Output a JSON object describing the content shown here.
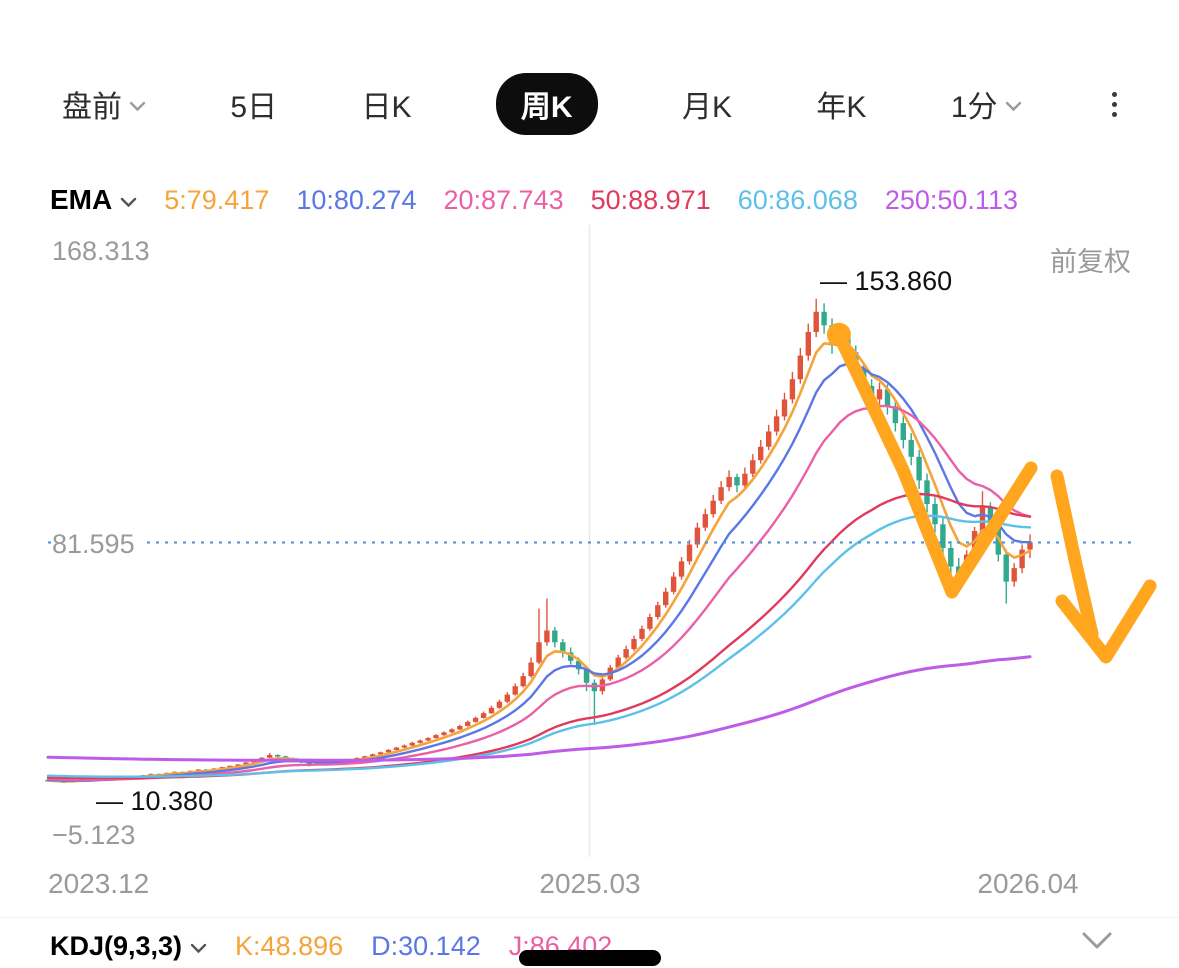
{
  "tabs": {
    "items": [
      {
        "label": "盘前",
        "chevron": true
      },
      {
        "label": "5日"
      },
      {
        "label": "日K"
      },
      {
        "label": "周K",
        "selected": true
      },
      {
        "label": "月K"
      },
      {
        "label": "年K"
      },
      {
        "label": "1分",
        "chevron": true
      }
    ]
  },
  "indicator_bar": {
    "name": "EMA",
    "values": [
      {
        "label": "5:79.417",
        "color": "#F4A43B"
      },
      {
        "label": "10:80.274",
        "color": "#5A77E6"
      },
      {
        "label": "20:87.743",
        "color": "#EC5FA7"
      },
      {
        "label": "50:88.971",
        "color": "#E03A5C"
      },
      {
        "label": "60:86.068",
        "color": "#5CC0E8"
      },
      {
        "label": "250:50.113",
        "color": "#BE5BE8"
      }
    ]
  },
  "chart": {
    "adjust_label": "前复权",
    "y_max_label": "168.313",
    "y_min_label": "−5.123",
    "price_line_label": "81.595",
    "high_annotation": "— 153.860",
    "low_annotation": "— 10.380",
    "x_labels": [
      "2023.12",
      "2025.03",
      "2026.04"
    ]
  },
  "chart_data": {
    "type": "candlestick",
    "title": "周K (weekly candles, 前复权)",
    "ylim": [
      -5.123,
      168.313
    ],
    "x_axis_labels": [
      "2023.12",
      "2025.03",
      "2026.04"
    ],
    "high_marker": 153.86,
    "low_marker": 10.38,
    "current_price": 81.595,
    "price_line_color": "#4A90D9",
    "up_color": "#E0543C",
    "down_color": "#31A98C",
    "grid_x_fraction": 0.5,
    "candles": [
      [
        11.2,
        11.4,
        10.9,
        11.0
      ],
      [
        11.0,
        11.1,
        10.7,
        10.8
      ],
      [
        10.8,
        10.9,
        10.38,
        10.5
      ],
      [
        10.5,
        11.0,
        10.4,
        10.9
      ],
      [
        10.9,
        11.3,
        10.8,
        11.2
      ],
      [
        11.2,
        11.3,
        10.9,
        11.0
      ],
      [
        11.0,
        11.5,
        10.9,
        11.4
      ],
      [
        11.4,
        11.9,
        11.3,
        11.8
      ],
      [
        11.8,
        11.9,
        11.5,
        11.6
      ],
      [
        11.6,
        12.1,
        11.5,
        12.0
      ],
      [
        12.0,
        12.4,
        11.9,
        12.3
      ],
      [
        12.3,
        12.4,
        12.0,
        12.1
      ],
      [
        12.1,
        12.7,
        12.0,
        12.6
      ],
      [
        12.6,
        13.1,
        12.5,
        13.0
      ],
      [
        13.0,
        13.1,
        12.7,
        12.8
      ],
      [
        12.8,
        13.4,
        12.7,
        13.3
      ],
      [
        13.3,
        13.7,
        13.2,
        13.6
      ],
      [
        13.6,
        13.7,
        13.3,
        13.4
      ],
      [
        13.4,
        14.0,
        13.3,
        13.9
      ],
      [
        13.9,
        14.4,
        13.8,
        14.3
      ],
      [
        14.3,
        14.4,
        14.0,
        14.1
      ],
      [
        14.1,
        14.7,
        14.0,
        14.6
      ],
      [
        14.6,
        15.1,
        14.5,
        15.0
      ],
      [
        15.0,
        15.5,
        14.9,
        15.4
      ],
      [
        15.4,
        15.9,
        15.3,
        15.8
      ],
      [
        15.8,
        16.5,
        15.7,
        16.4
      ],
      [
        16.4,
        17.1,
        16.3,
        17.0
      ],
      [
        17.0,
        17.9,
        16.9,
        17.8
      ],
      [
        17.8,
        19.2,
        17.7,
        18.6
      ],
      [
        18.6,
        18.8,
        18.0,
        18.2
      ],
      [
        18.2,
        18.4,
        17.4,
        17.6
      ],
      [
        17.6,
        17.8,
        16.8,
        17.0
      ],
      [
        17.0,
        17.2,
        16.2,
        16.4
      ],
      [
        16.4,
        16.6,
        15.2,
        15.9
      ],
      [
        15.9,
        16.5,
        15.8,
        16.3
      ],
      [
        16.3,
        16.4,
        15.8,
        16.0
      ],
      [
        16.0,
        16.7,
        15.9,
        16.5
      ],
      [
        16.5,
        17.1,
        16.4,
        16.9
      ],
      [
        16.9,
        17.5,
        16.8,
        17.3
      ],
      [
        17.3,
        17.9,
        17.2,
        17.7
      ],
      [
        17.7,
        18.4,
        17.6,
        18.2
      ],
      [
        18.2,
        19.0,
        18.1,
        18.8
      ],
      [
        18.8,
        19.6,
        18.7,
        19.4
      ],
      [
        19.4,
        20.3,
        19.3,
        20.1
      ],
      [
        20.1,
        21.0,
        20.0,
        20.8
      ],
      [
        20.8,
        21.7,
        20.6,
        21.4
      ],
      [
        21.4,
        22.5,
        21.3,
        22.2
      ],
      [
        22.2,
        23.2,
        22.0,
        22.9
      ],
      [
        22.9,
        23.9,
        22.7,
        23.6
      ],
      [
        23.6,
        24.8,
        23.5,
        24.5
      ],
      [
        24.5,
        25.6,
        24.3,
        25.3
      ],
      [
        25.3,
        26.5,
        25.1,
        26.2
      ],
      [
        26.2,
        27.6,
        26.0,
        27.2
      ],
      [
        27.2,
        28.8,
        27.0,
        28.4
      ],
      [
        28.4,
        30.0,
        28.2,
        29.6
      ],
      [
        29.6,
        31.5,
        29.4,
        31.0
      ],
      [
        31.0,
        33.2,
        30.8,
        32.6
      ],
      [
        32.6,
        35.0,
        32.3,
        34.4
      ],
      [
        34.4,
        37.2,
        34.0,
        36.5
      ],
      [
        36.5,
        39.8,
        36.2,
        39.0
      ],
      [
        39.0,
        43.0,
        38.6,
        42.0
      ],
      [
        42.0,
        47.5,
        41.5,
        46.0
      ],
      [
        46.0,
        62.0,
        45.5,
        52.0
      ],
      [
        52.0,
        65.0,
        51.0,
        55.5
      ],
      [
        55.5,
        56.5,
        50.5,
        52.0
      ],
      [
        52.0,
        53.0,
        47.5,
        49.0
      ],
      [
        49.0,
        50.5,
        45.5,
        46.5
      ],
      [
        46.5,
        47.5,
        42.5,
        44.0
      ],
      [
        44.0,
        45.0,
        37.5,
        40.0
      ],
      [
        40.0,
        41.0,
        27.5,
        37.5
      ],
      [
        37.5,
        42.0,
        36.5,
        41.0
      ],
      [
        41.0,
        45.3,
        40.5,
        44.5
      ],
      [
        44.5,
        48.3,
        44.0,
        47.5
      ],
      [
        47.5,
        51.0,
        47.0,
        50.0
      ],
      [
        50.0,
        54.0,
        49.4,
        53.0
      ],
      [
        53.0,
        57.0,
        52.4,
        56.0
      ],
      [
        56.0,
        60.5,
        55.4,
        59.5
      ],
      [
        59.5,
        64.0,
        58.8,
        63.0
      ],
      [
        63.0,
        68.2,
        62.3,
        67.0
      ],
      [
        67.0,
        72.8,
        66.2,
        71.5
      ],
      [
        71.5,
        77.3,
        70.6,
        76.0
      ],
      [
        76.0,
        82.4,
        75.0,
        81.0
      ],
      [
        81.0,
        87.5,
        80.0,
        86.0
      ],
      [
        86.0,
        91.6,
        85.0,
        90.0
      ],
      [
        90.0,
        95.7,
        89.0,
        94.0
      ],
      [
        94.0,
        99.8,
        93.0,
        98.0
      ],
      [
        98.0,
        103.0,
        96.8,
        101.0
      ],
      [
        101.0,
        102.0,
        96.5,
        98.5
      ],
      [
        98.5,
        103.8,
        97.5,
        102.0
      ],
      [
        102.0,
        107.8,
        101.0,
        106.0
      ],
      [
        106.0,
        112.0,
        105.0,
        110.0
      ],
      [
        110.0,
        116.5,
        109.0,
        114.5
      ],
      [
        114.5,
        121.0,
        113.3,
        119.0
      ],
      [
        119.0,
        126.0,
        117.8,
        124.0
      ],
      [
        124.0,
        132.2,
        122.8,
        130.0
      ],
      [
        130.0,
        139.3,
        128.7,
        137.0
      ],
      [
        137.0,
        146.5,
        135.5,
        144.0
      ],
      [
        144.0,
        153.86,
        142.5,
        150.0
      ],
      [
        150.0,
        152.5,
        143.5,
        146.0
      ],
      [
        146.0,
        148.0,
        137.5,
        140.0
      ],
      [
        140.0,
        146.5,
        138.5,
        144.0
      ],
      [
        144.0,
        145.5,
        136.0,
        138.0
      ],
      [
        138.0,
        140.0,
        130.5,
        133.0
      ],
      [
        133.0,
        135.0,
        125.5,
        128.0
      ],
      [
        128.0,
        130.0,
        121.5,
        124.0
      ],
      [
        124.0,
        129.0,
        122.5,
        127.0
      ],
      [
        127.0,
        128.5,
        119.5,
        122.0
      ],
      [
        122.0,
        124.0,
        114.5,
        117.0
      ],
      [
        117.0,
        119.0,
        109.5,
        112.0
      ],
      [
        112.0,
        114.0,
        104.5,
        107.0
      ],
      [
        107.0,
        109.0,
        97.5,
        100.0
      ],
      [
        100.0,
        102.0,
        90.5,
        93.0
      ],
      [
        93.0,
        95.0,
        84.5,
        87.0
      ],
      [
        87.0,
        89.0,
        77.5,
        80.0
      ],
      [
        80.0,
        82.0,
        71.5,
        74.5
      ],
      [
        74.5,
        77.0,
        69.0,
        72.0
      ],
      [
        72.0,
        79.3,
        71.0,
        78.0
      ],
      [
        78.0,
        86.2,
        77.0,
        85.0
      ],
      [
        85.0,
        96.8,
        84.0,
        92.0
      ],
      [
        92.0,
        93.5,
        84.0,
        86.0
      ],
      [
        86.0,
        87.5,
        76.0,
        78.0
      ],
      [
        78.0,
        79.5,
        63.5,
        70.0
      ],
      [
        70.0,
        75.5,
        68.5,
        74.0
      ],
      [
        74.0,
        81.0,
        72.5,
        79.5
      ],
      [
        79.5,
        84.0,
        77.0,
        81.6
      ]
    ],
    "emas": [
      {
        "period": 5,
        "color": "#F4A43B",
        "start": 11.0,
        "width": 2.6
      },
      {
        "period": 10,
        "color": "#5A77E6",
        "start": 11.2,
        "width": 2.4
      },
      {
        "period": 20,
        "color": "#EC5FA7",
        "start": 11.5,
        "width": 2.4
      },
      {
        "period": 50,
        "color": "#E03A5C",
        "start": 12.0,
        "width": 2.4
      },
      {
        "period": 60,
        "color": "#5CC0E8",
        "start": 12.5,
        "width": 2.4
      },
      {
        "period": 250,
        "color": "#BE5BE8",
        "start": 18.0,
        "width": 3.0
      }
    ],
    "drawing": {
      "color": "#FFA61E",
      "stroke_width": 13,
      "start_blob": [
        0.7115,
        0.17
      ],
      "strokes": [
        [
          [
            0.7108,
            0.1674
          ],
          [
            0.7659,
            0.3798
          ],
          [
            0.8074,
            0.569
          ],
          [
            0.8745,
            0.3767
          ]
        ],
        [
          [
            0.8965,
            0.3892
          ],
          [
            0.9118,
            0.5194
          ],
          [
            0.9262,
            0.6341
          ]
        ],
        [
          [
            0.9008,
            0.5829
          ],
          [
            0.9381,
            0.6698
          ],
          [
            0.9754,
            0.5597
          ]
        ]
      ]
    }
  },
  "sub_indicator": {
    "name": "KDJ(9,3,3)",
    "values": [
      {
        "label": "K:48.896",
        "color": "#F4A43B"
      },
      {
        "label": "D:30.142",
        "color": "#5A77E6"
      },
      {
        "label": "J:86.402",
        "color": "#EC5FA7"
      }
    ]
  }
}
